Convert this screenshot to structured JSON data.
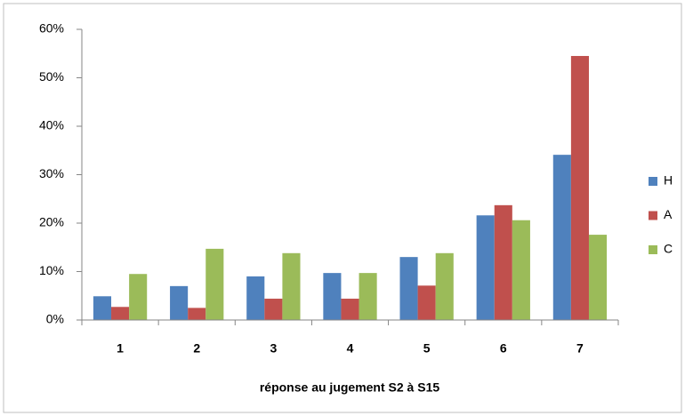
{
  "chart_data": {
    "type": "bar",
    "x_label": "réponse au jugement S2 à S15",
    "categories": [
      "1",
      "2",
      "3",
      "4",
      "5",
      "6",
      "7"
    ],
    "series": [
      {
        "name": "H",
        "color": "#4f81bd",
        "values": [
          4.9,
          7,
          9,
          9.7,
          13,
          21.6,
          34.1
        ]
      },
      {
        "name": "A",
        "color": "#c0504d",
        "values": [
          2.7,
          2.5,
          4.4,
          4.4,
          7.1,
          23.7,
          54.5
        ]
      },
      {
        "name": "C",
        "color": "#9bbb59",
        "values": [
          9.5,
          14.7,
          13.8,
          9.7,
          13.8,
          20.6,
          17.6
        ]
      }
    ],
    "ylim": [
      0,
      60
    ],
    "yticks": [
      {
        "value": 0,
        "label": "0%"
      },
      {
        "value": 10,
        "label": "10%"
      },
      {
        "value": 20,
        "label": "20%"
      },
      {
        "value": 30,
        "label": "30%"
      },
      {
        "value": 40,
        "label": "40%"
      },
      {
        "value": 50,
        "label": "50%"
      },
      {
        "value": 60,
        "label": "60%"
      }
    ],
    "grid": false,
    "legend": "right"
  }
}
